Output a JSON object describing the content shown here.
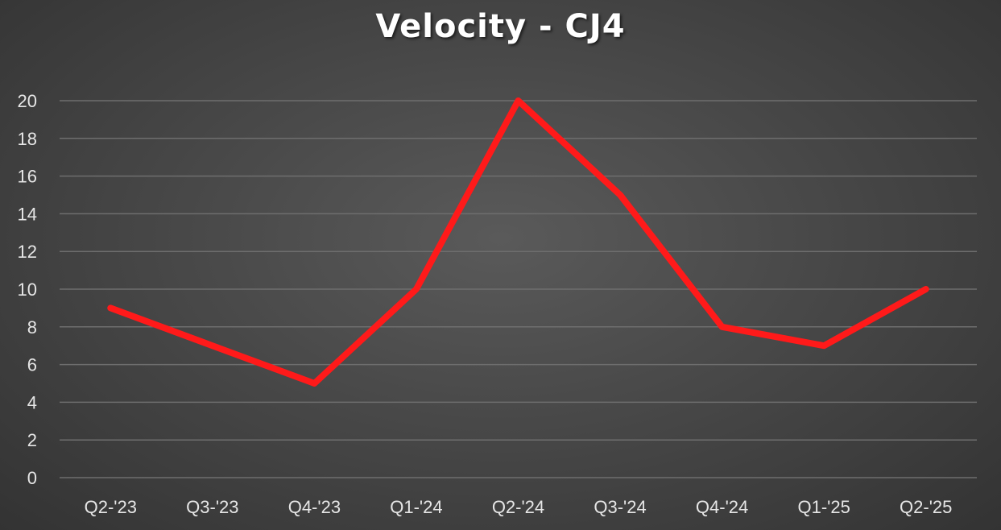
{
  "chart_data": {
    "type": "line",
    "title": "Velocity - CJ4",
    "xlabel": "",
    "ylabel": "",
    "categories": [
      "Q2-'23",
      "Q3-'23",
      "Q4-'23",
      "Q1-'24",
      "Q2-'24",
      "Q3-'24",
      "Q4-'24",
      "Q1-'25",
      "Q2-'25"
    ],
    "series": [
      {
        "values": [
          9,
          7,
          5,
          10,
          20,
          15,
          8,
          7,
          10
        ],
        "color": "#ff1a1a"
      }
    ],
    "ylim": [
      0,
      20
    ],
    "yticks": [
      "0",
      "2",
      "4",
      "6",
      "8",
      "10",
      "12",
      "14",
      "16",
      "18",
      "20"
    ],
    "grid": true,
    "legend": "none",
    "colors": {
      "background": "#4a4a4a",
      "gridline": "#6e6e6e",
      "text": "#e6e6e6",
      "line": "#ff1a1a"
    }
  }
}
